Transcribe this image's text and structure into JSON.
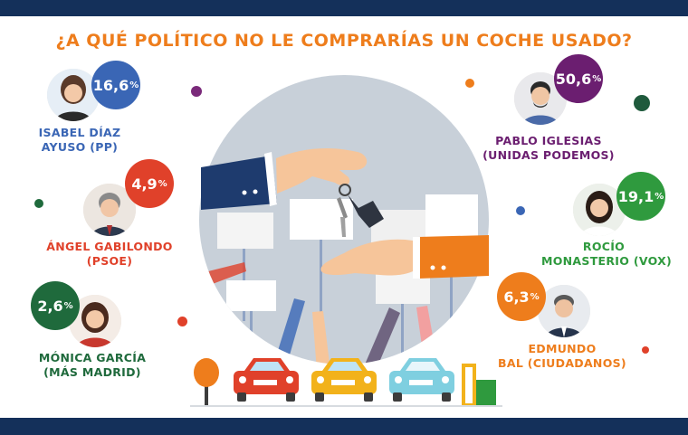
{
  "title": "¿A QUÉ POLÍTICO NO LE COMPRARÍAS UN COCHE USADO?",
  "chart_data": {
    "type": "bar",
    "categories": [
      "ISABEL DÍAZ AYUSO (PP)",
      "ÁNGEL GABILONDO (PSOE)",
      "MÓNICA GARCÍA (MÁS MADRID)",
      "PABLO IGLESIAS (UNIDAS PODEMOS)",
      "ROCÍO MONASTERIO (VOX)",
      "EDMUNDO BAL (CIUDADANOS)"
    ],
    "values": [
      16.6,
      4.9,
      2.6,
      50.6,
      19.1,
      6.3
    ],
    "unit": "%"
  },
  "candidates": [
    {
      "id": "ayuso",
      "value": "16,6",
      "pct": "%",
      "line1": "ISABEL DÍAZ",
      "line2": "AYUSO (PP)",
      "color": "#3a66b5"
    },
    {
      "id": "gabilondo",
      "value": "4,9",
      "pct": "%",
      "line1": "ÁNGEL GABILONDO",
      "line2": "(PSOE)",
      "color": "#e0412a"
    },
    {
      "id": "garcia",
      "value": "2,6",
      "pct": "%",
      "line1": "MÓNICA GARCÍA",
      "line2": "(MÁS MADRID)",
      "color": "#1f6a3c"
    },
    {
      "id": "iglesias",
      "value": "50,6",
      "pct": "%",
      "line1": "PABLO IGLESIAS",
      "line2": "(UNIDAS PODEMOS)",
      "color": "#6b1e70"
    },
    {
      "id": "monasterio",
      "value": "19,1",
      "pct": "%",
      "line1": "ROCÍO",
      "line2": "MONASTERIO (VOX)",
      "color": "#2f9a3e"
    },
    {
      "id": "bal",
      "value": "6,3",
      "pct": "%",
      "line1": "EDMUNDO",
      "line2": "BAL (CIUDADANOS)",
      "color": "#ee7d1c"
    }
  ],
  "colors": {
    "accent": "#ee7d1c",
    "band": "#14305a",
    "circle": "#c8d0d9"
  }
}
